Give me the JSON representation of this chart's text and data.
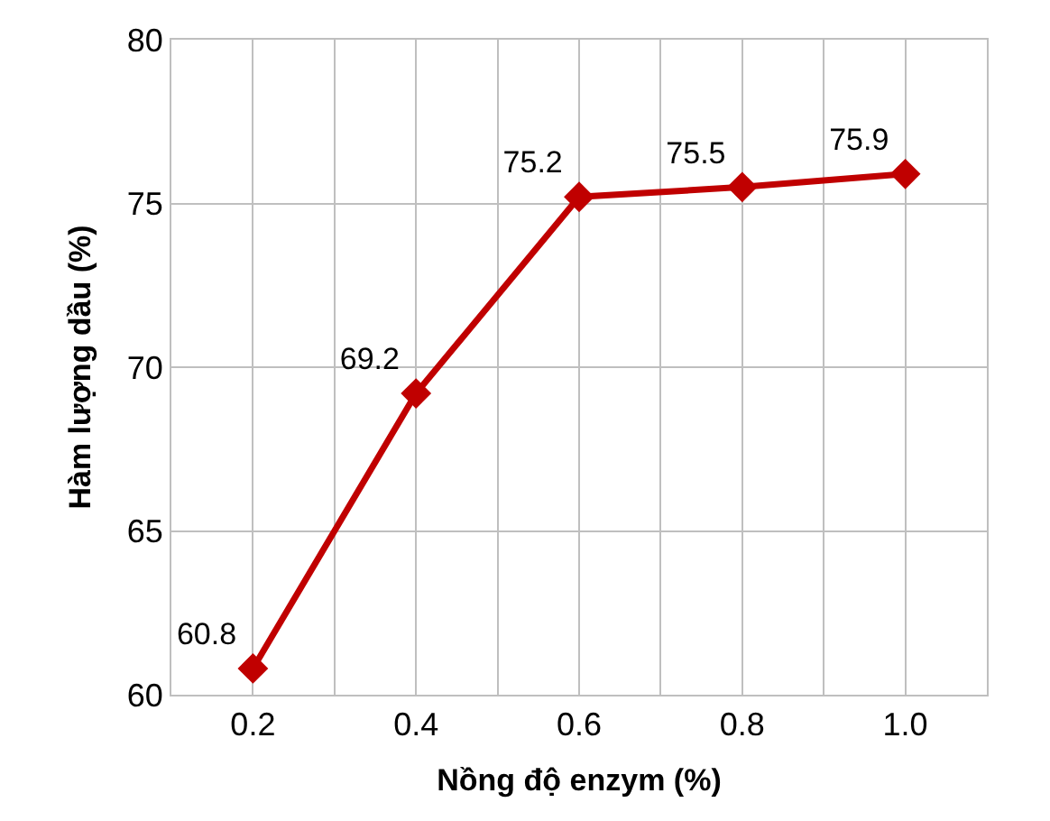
{
  "chart_data": {
    "type": "line",
    "xlabel": "Nồng độ enzym (%)",
    "ylabel": "Hàm lượng dầu (%)",
    "x": [
      0.2,
      0.4,
      0.6,
      0.8,
      1.0
    ],
    "series": [
      {
        "color": "#c00000",
        "values": [
          60.8,
          69.2,
          75.2,
          75.5,
          75.9
        ]
      }
    ],
    "xlim": [
      0.1,
      1.1
    ],
    "xticks": [
      {
        "value": 0.2,
        "label": "0.2"
      },
      {
        "value": 0.3,
        "label": null
      },
      {
        "value": 0.4,
        "label": "0.4"
      },
      {
        "value": 0.5,
        "label": null
      },
      {
        "value": 0.6,
        "label": "0.6"
      },
      {
        "value": 0.7,
        "label": null
      },
      {
        "value": 0.8,
        "label": "0.8"
      },
      {
        "value": 0.9,
        "label": null
      },
      {
        "value": 1.0,
        "label": "1.0"
      }
    ],
    "ylim": [
      60,
      80
    ],
    "yticks": [
      60,
      65,
      70,
      75,
      80
    ],
    "grid": true,
    "legend": false,
    "marker": "diamond",
    "line_style": "solid",
    "data_labels": true
  }
}
